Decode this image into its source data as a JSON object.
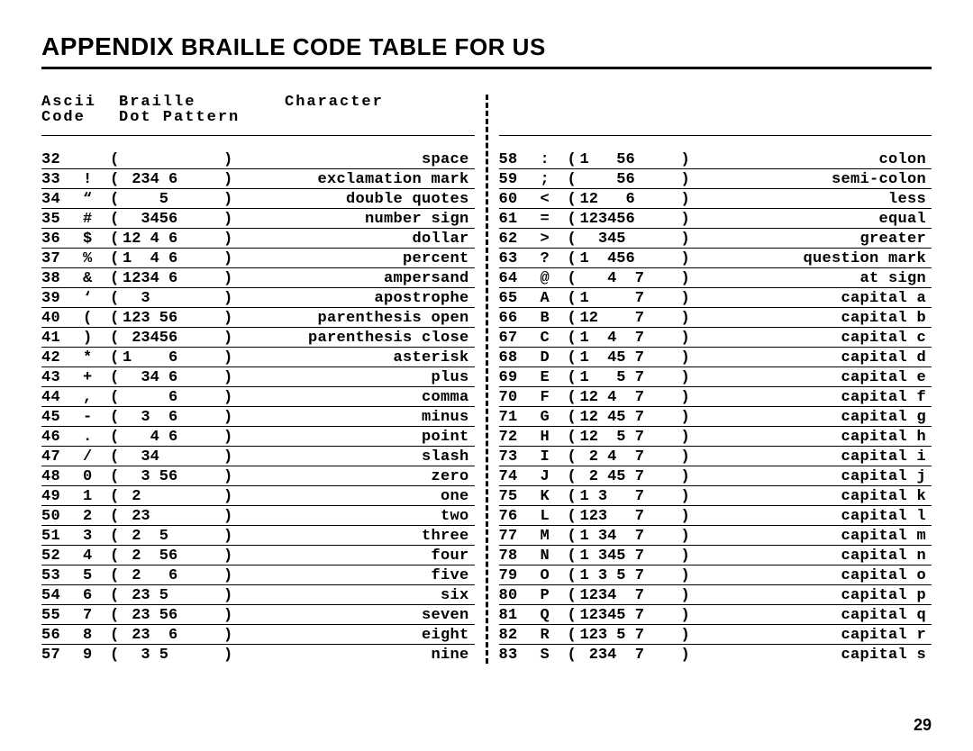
{
  "title": {
    "appendix": "APPENDIX",
    "rest": " BRAILLE CODE TABLE FOR US"
  },
  "headers": {
    "ascii_line1": "Ascii",
    "ascii_line2": "Code",
    "braille_line1": "Braille",
    "braille_line2": "Dot Pattern",
    "character": "Character"
  },
  "page_number": "29",
  "left": [
    {
      "code": "32",
      "sym": " ",
      "pat": "      ",
      "name": "space"
    },
    {
      "code": "33",
      "sym": "!",
      "pat": " 234 6",
      "name": "exclamation mark"
    },
    {
      "code": "34",
      "sym": "“",
      "pat": "    5 ",
      "name": "double quotes"
    },
    {
      "code": "35",
      "sym": "#",
      "pat": "  3456",
      "name": "number sign"
    },
    {
      "code": "36",
      "sym": "$",
      "pat": "12 4 6",
      "name": "dollar"
    },
    {
      "code": "37",
      "sym": "%",
      "pat": "1  4 6",
      "name": "percent"
    },
    {
      "code": "38",
      "sym": "&",
      "pat": "1234 6",
      "name": "ampersand"
    },
    {
      "code": "39",
      "sym": "‘",
      "pat": "  3   ",
      "name": "apostrophe"
    },
    {
      "code": "40",
      "sym": "(",
      "pat": "123 56",
      "name": "parenthesis open"
    },
    {
      "code": "41",
      "sym": ")",
      "pat": " 23456",
      "name": "parenthesis close"
    },
    {
      "code": "42",
      "sym": "*",
      "pat": "1    6",
      "name": "asterisk"
    },
    {
      "code": "43",
      "sym": "+",
      "pat": "  34 6",
      "name": "plus"
    },
    {
      "code": "44",
      "sym": ",",
      "pat": "     6",
      "name": "comma"
    },
    {
      "code": "45",
      "sym": "-",
      "pat": "  3  6",
      "name": "minus"
    },
    {
      "code": "46",
      "sym": ".",
      "pat": "   4 6",
      "name": "point"
    },
    {
      "code": "47",
      "sym": "/",
      "pat": "  34  ",
      "name": "slash"
    },
    {
      "code": "48",
      "sym": "0",
      "pat": "  3 56",
      "name": "zero"
    },
    {
      "code": "49",
      "sym": "1",
      "pat": " 2    ",
      "name": "one"
    },
    {
      "code": "50",
      "sym": "2",
      "pat": " 23   ",
      "name": "two"
    },
    {
      "code": "51",
      "sym": "3",
      "pat": " 2  5 ",
      "name": "three"
    },
    {
      "code": "52",
      "sym": "4",
      "pat": " 2  56",
      "name": "four"
    },
    {
      "code": "53",
      "sym": "5",
      "pat": " 2   6",
      "name": "five"
    },
    {
      "code": "54",
      "sym": "6",
      "pat": " 23 5 ",
      "name": "six"
    },
    {
      "code": "55",
      "sym": "7",
      "pat": " 23 56",
      "name": "seven"
    },
    {
      "code": "56",
      "sym": "8",
      "pat": " 23  6",
      "name": "eight"
    },
    {
      "code": "57",
      "sym": "9",
      "pat": "  3 5 ",
      "name": "nine"
    }
  ],
  "right": [
    {
      "code": "58",
      "sym": ":",
      "pat": "1   56 ",
      "name": "colon"
    },
    {
      "code": "59",
      "sym": ";",
      "pat": "    56 ",
      "name": "semi-colon"
    },
    {
      "code": "60",
      "sym": "<",
      "pat": "12   6 ",
      "name": "less"
    },
    {
      "code": "61",
      "sym": "=",
      "pat": "123456 ",
      "name": "equal"
    },
    {
      "code": "62",
      "sym": ">",
      "pat": "  345  ",
      "name": "greater"
    },
    {
      "code": "63",
      "sym": "?",
      "pat": "1  456 ",
      "name": "question mark"
    },
    {
      "code": "64",
      "sym": "@",
      "pat": "   4  7",
      "name": "at sign"
    },
    {
      "code": "65",
      "sym": "A",
      "pat": "1     7",
      "name": "capital a"
    },
    {
      "code": "66",
      "sym": "B",
      "pat": "12    7",
      "name": "capital b"
    },
    {
      "code": "67",
      "sym": "C",
      "pat": "1  4  7",
      "name": "capital c"
    },
    {
      "code": "68",
      "sym": "D",
      "pat": "1  45 7",
      "name": "capital d"
    },
    {
      "code": "69",
      "sym": "E",
      "pat": "1   5 7",
      "name": "capital e"
    },
    {
      "code": "70",
      "sym": "F",
      "pat": "12 4  7",
      "name": "capital f"
    },
    {
      "code": "71",
      "sym": "G",
      "pat": "12 45 7",
      "name": "capital g"
    },
    {
      "code": "72",
      "sym": "H",
      "pat": "12  5 7",
      "name": "capital h"
    },
    {
      "code": "73",
      "sym": "I",
      "pat": " 2 4  7",
      "name": "capital i"
    },
    {
      "code": "74",
      "sym": "J",
      "pat": " 2 45 7",
      "name": "capital j"
    },
    {
      "code": "75",
      "sym": "K",
      "pat": "1 3   7",
      "name": "capital k"
    },
    {
      "code": "76",
      "sym": "L",
      "pat": "123   7",
      "name": "capital l"
    },
    {
      "code": "77",
      "sym": "M",
      "pat": "1 34  7",
      "name": "capital m"
    },
    {
      "code": "78",
      "sym": "N",
      "pat": "1 345 7",
      "name": "capital n"
    },
    {
      "code": "79",
      "sym": "O",
      "pat": "1 3 5 7",
      "name": "capital o"
    },
    {
      "code": "80",
      "sym": "P",
      "pat": "1234  7",
      "name": "capital p"
    },
    {
      "code": "81",
      "sym": "Q",
      "pat": "12345 7",
      "name": "capital q"
    },
    {
      "code": "82",
      "sym": "R",
      "pat": "123 5 7",
      "name": "capital r"
    },
    {
      "code": "83",
      "sym": "S",
      "pat": " 234  7",
      "name": "capital s"
    }
  ]
}
